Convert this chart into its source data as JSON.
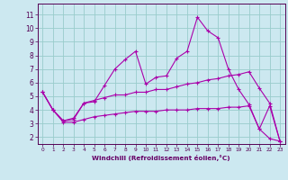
{
  "background_color": "#cce8f0",
  "line_color": "#aa00aa",
  "grid_color": "#99cccc",
  "xlabel": "Windchill (Refroidissement éolien,°C)",
  "xlabel_color": "#660066",
  "tick_color": "#550055",
  "x_ticks": [
    0,
    1,
    2,
    3,
    4,
    5,
    6,
    7,
    8,
    9,
    10,
    11,
    12,
    13,
    14,
    15,
    16,
    17,
    18,
    19,
    20,
    21,
    22,
    23
  ],
  "y_ticks": [
    2,
    3,
    4,
    5,
    6,
    7,
    8,
    9,
    10,
    11
  ],
  "ylim": [
    1.5,
    11.8
  ],
  "xlim": [
    -0.5,
    23.5
  ],
  "line1_x": [
    0,
    1,
    2,
    3,
    4,
    5,
    6,
    7,
    8,
    9,
    10,
    11,
    12,
    13,
    14,
    15,
    16,
    17,
    18,
    19,
    20,
    21,
    22,
    23
  ],
  "line1_y": [
    5.3,
    4.0,
    3.2,
    3.3,
    4.5,
    4.6,
    5.8,
    7.0,
    7.7,
    8.3,
    5.9,
    6.4,
    6.5,
    7.8,
    8.3,
    10.8,
    9.8,
    9.3,
    7.0,
    5.5,
    4.4,
    2.6,
    4.3,
    1.7
  ],
  "line2_x": [
    0,
    1,
    2,
    3,
    4,
    5,
    6,
    7,
    8,
    9,
    10,
    11,
    12,
    13,
    14,
    15,
    16,
    17,
    18,
    19,
    20,
    21,
    22,
    23
  ],
  "line2_y": [
    5.3,
    4.0,
    3.2,
    3.4,
    4.5,
    4.7,
    4.9,
    5.1,
    5.1,
    5.3,
    5.3,
    5.5,
    5.5,
    5.7,
    5.9,
    6.0,
    6.2,
    6.3,
    6.5,
    6.6,
    6.8,
    5.6,
    4.5,
    1.7
  ],
  "line3_x": [
    0,
    1,
    2,
    3,
    4,
    5,
    6,
    7,
    8,
    9,
    10,
    11,
    12,
    13,
    14,
    15,
    16,
    17,
    18,
    19,
    20,
    21,
    22,
    23
  ],
  "line3_y": [
    5.3,
    4.0,
    3.1,
    3.1,
    3.3,
    3.5,
    3.6,
    3.7,
    3.8,
    3.9,
    3.9,
    3.9,
    4.0,
    4.0,
    4.0,
    4.1,
    4.1,
    4.1,
    4.2,
    4.2,
    4.3,
    2.6,
    1.9,
    1.7
  ]
}
